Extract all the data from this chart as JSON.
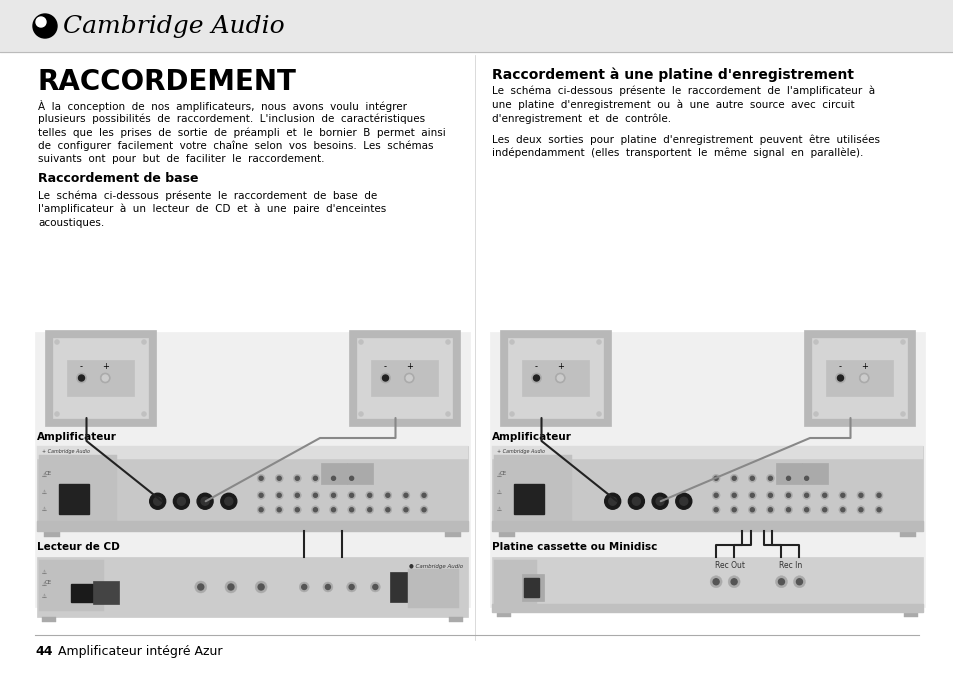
{
  "page_bg": "#ffffff",
  "header_bg": "#e8e8e8",
  "header_logo_text": "Cambridge Audio",
  "title": "RACCORDEMENT",
  "intro_text_lines": [
    "À  la  conception  de  nos  amplificateurs,  nous  avons  voulu  intégrer",
    "plusieurs  possibilités  de  raccordement.  L'inclusion  de  caractéristiques",
    "telles  que  les  prises  de  sortie  de  préampli  et  le  bornier  B  permet  ainsi",
    "de  configurer  facilement  votre  chaîne  selon  vos  besoins.  Les  schémas",
    "suivants  ont  pour  but  de  faciliter  le  raccordement."
  ],
  "section1_title": "Raccordement de base",
  "section1_text_lines": [
    "Le  schéma  ci-dessous  présente  le  raccordement  de  base  de",
    "l'amplificateur  à  un  lecteur  de  CD  et  à  une  paire  d'enceintes",
    "acoustiques."
  ],
  "section2_title": "Raccordement à une platine d'enregistrement",
  "section2_text_lines": [
    "Le  schéma  ci-dessous  présente  le  raccordement  de  l'amplificateur  à",
    "une  platine  d'enregistrement  ou  à  une  autre  source  avec  circuit",
    "d'enregistrement  et  de  contrôle."
  ],
  "section2_text2_lines": [
    "Les  deux  sorties  pour  platine  d'enregistrement  peuvent  être  utilisées",
    "indépendamment  (elles  transportent  le  même  signal  en  parallèle)."
  ],
  "label_amp_left": "Amplificateur",
  "label_cd": "Lecteur de CD",
  "label_amp_right": "Amplificateur",
  "label_cassette": "Platine cassette ou Minidisc",
  "footer_num": "44",
  "footer_text": "Amplificateur intégré Azur",
  "wire_color": "#555555",
  "wire_color2": "#888888",
  "diagram_bg": "#d8d8d8",
  "amp_bg": "#cccccc",
  "amp_dark": "#888888",
  "speaker_bg": "#c8c8c8",
  "cd_bg": "#c0c0c0",
  "cassette_bg": "#d0d0d0"
}
